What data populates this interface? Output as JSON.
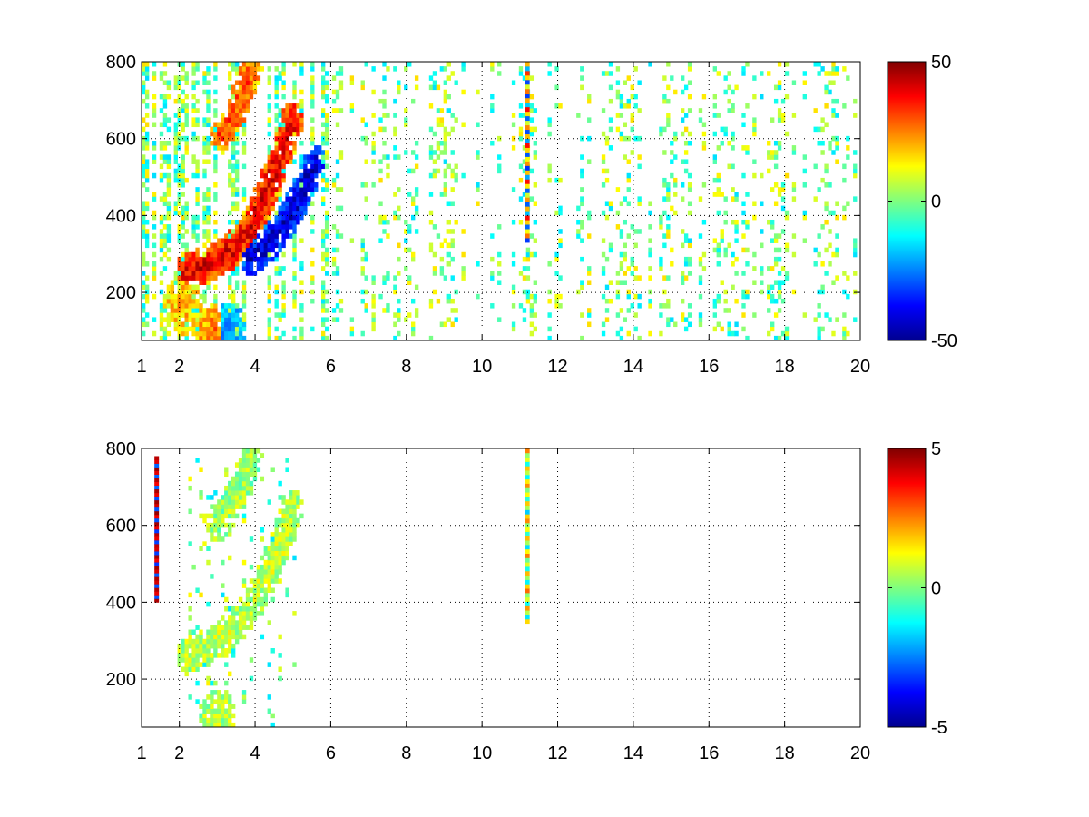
{
  "chart_data": [
    {
      "type": "heatmap",
      "title": "",
      "xlabel": "",
      "ylabel": "",
      "xlim": [
        1,
        20
      ],
      "ylim": [
        75,
        800
      ],
      "xticks": [
        1,
        2,
        4,
        6,
        8,
        10,
        12,
        14,
        16,
        18,
        20
      ],
      "yticks": [
        200,
        400,
        600,
        800
      ],
      "grid": true,
      "grid_style": "dotted",
      "colormap": "jet",
      "colorbar": {
        "range": [
          -50,
          50
        ],
        "ticks": [
          50,
          0,
          -50
        ]
      },
      "features": [
        {
          "kind": "ridge",
          "value": 40,
          "points": [
            [
              2.2,
              255
            ],
            [
              2.8,
              275
            ],
            [
              3.4,
              310
            ],
            [
              3.9,
              370
            ],
            [
              4.3,
              460
            ],
            [
              4.7,
              560
            ],
            [
              5.0,
              650
            ]
          ]
        },
        {
          "kind": "ridge",
          "value": 30,
          "points": [
            [
              3.1,
              610
            ],
            [
              3.4,
              650
            ],
            [
              3.7,
              720
            ],
            [
              3.9,
              780
            ]
          ]
        },
        {
          "kind": "ridge",
          "value": -42,
          "points": [
            [
              3.9,
              290
            ],
            [
              4.4,
              330
            ],
            [
              4.9,
              400
            ],
            [
              5.3,
              470
            ],
            [
              5.6,
              540
            ]
          ]
        },
        {
          "kind": "blob",
          "value": -25,
          "x": 3.3,
          "y": 95
        },
        {
          "kind": "blob",
          "value": 25,
          "x": 2.9,
          "y": 92
        },
        {
          "kind": "blob",
          "value": 20,
          "x": 2.1,
          "y": 170
        },
        {
          "kind": "column",
          "x": 11.2,
          "ymin": 330,
          "ymax": 800,
          "values": [
            -30,
            25,
            10,
            -30,
            15,
            35,
            -20,
            20
          ]
        }
      ]
    },
    {
      "type": "heatmap",
      "title": "",
      "xlabel": "",
      "ylabel": "",
      "xlim": [
        1,
        20
      ],
      "ylim": [
        75,
        800
      ],
      "xticks": [
        1,
        2,
        4,
        6,
        8,
        10,
        12,
        14,
        16,
        18,
        20
      ],
      "yticks": [
        200,
        400,
        600,
        800
      ],
      "grid": true,
      "grid_style": "dotted",
      "colormap": "jet",
      "colorbar": {
        "range": [
          -5,
          5
        ],
        "ticks": [
          5,
          0,
          -5
        ]
      },
      "features": [
        {
          "kind": "ridge",
          "value": 0.6,
          "points": [
            [
              2.2,
              260
            ],
            [
              2.8,
              285
            ],
            [
              3.4,
              330
            ],
            [
              3.9,
              390
            ],
            [
              4.3,
              470
            ],
            [
              4.7,
              560
            ],
            [
              5.0,
              650
            ]
          ]
        },
        {
          "kind": "ridge",
          "value": 0.3,
          "points": [
            [
              3.0,
              600
            ],
            [
              3.4,
              660
            ],
            [
              3.7,
              720
            ],
            [
              3.9,
              780
            ]
          ]
        },
        {
          "kind": "blob",
          "value": 0.5,
          "x": 3.0,
          "y": 95
        },
        {
          "kind": "column",
          "x": 11.2,
          "ymin": 345,
          "ymax": 800,
          "values": [
            1.5,
            -1.5,
            0.5,
            2,
            -1,
            1,
            0,
            2.5
          ]
        },
        {
          "kind": "column",
          "x": 1.4,
          "ymin": 400,
          "ymax": 780,
          "values": [
            4.5,
            -3,
            4
          ]
        }
      ]
    }
  ]
}
